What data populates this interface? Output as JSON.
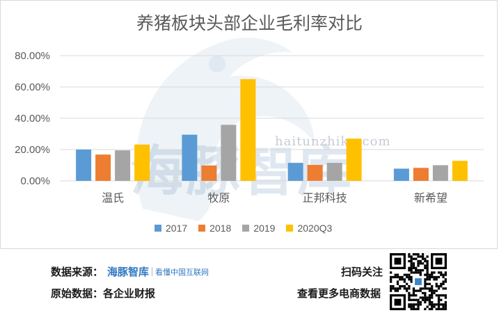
{
  "chart_data": {
    "type": "bar",
    "title": "养猪板块头部企业毛利率对比",
    "categories": [
      "温氏",
      "牧原",
      "正邦科技",
      "新希望"
    ],
    "series": [
      {
        "name": "2017",
        "color": "#5b9bd5",
        "values": [
          20.0,
          29.5,
          11.5,
          7.8
        ]
      },
      {
        "name": "2018",
        "color": "#ed7d31",
        "values": [
          16.8,
          9.8,
          10.2,
          8.3
        ]
      },
      {
        "name": "2019",
        "color": "#a5a5a5",
        "values": [
          19.5,
          35.8,
          11.5,
          10.0
        ]
      },
      {
        "name": "2020Q3",
        "color": "#ffc000",
        "values": [
          23.2,
          65.0,
          27.0,
          12.8
        ]
      }
    ],
    "ylim": [
      0,
      80
    ],
    "yticks": [
      "0.00%",
      "20.00%",
      "40.00%",
      "60.00%",
      "80.00%"
    ],
    "grid": true,
    "legend_position": "bottom"
  },
  "watermark": {
    "text": "海豚智库",
    "url": "haitunzhiku.com"
  },
  "footer": {
    "source_label": "数据来源：",
    "brand_name": "海豚智库",
    "brand_slogan": "看懂中国互联网",
    "original_label": "原始数据：各企业财报",
    "scan_label": "扫码关注",
    "more_label": "查看更多电商数据"
  }
}
